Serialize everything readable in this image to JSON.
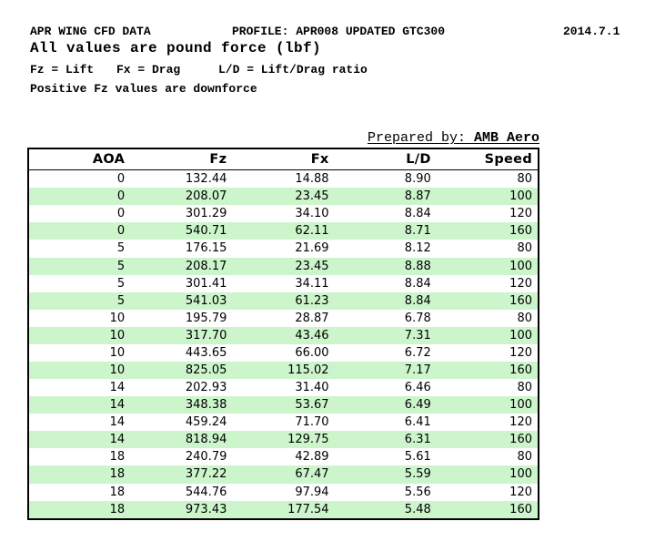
{
  "header": {
    "title": "APR WING CFD DATA",
    "profile": "PROFILE: APR008 UPDATED GTC300",
    "date": "2014.7.1",
    "subtitle": "All values are pound force (lbf)",
    "legend": [
      "Fz = Lift",
      "Fx = Drag",
      "L/D = Lift/Drag ratio"
    ],
    "note": "Positive Fz values are downforce"
  },
  "prepared_by": {
    "label": "Prepared by: ",
    "name": "AMB Aero"
  },
  "table": {
    "columns": [
      "AOA",
      "Fz",
      "Fx",
      "L/D",
      "Speed"
    ],
    "rows": [
      [
        "0",
        "132.44",
        "14.88",
        "8.90",
        "80"
      ],
      [
        "0",
        "208.07",
        "23.45",
        "8.87",
        "100"
      ],
      [
        "0",
        "301.29",
        "34.10",
        "8.84",
        "120"
      ],
      [
        "0",
        "540.71",
        "62.11",
        "8.71",
        "160"
      ],
      [
        "5",
        "176.15",
        "21.69",
        "8.12",
        "80"
      ],
      [
        "5",
        "208.17",
        "23.45",
        "8.88",
        "100"
      ],
      [
        "5",
        "301.41",
        "34.11",
        "8.84",
        "120"
      ],
      [
        "5",
        "541.03",
        "61.23",
        "8.84",
        "160"
      ],
      [
        "10",
        "195.79",
        "28.87",
        "6.78",
        "80"
      ],
      [
        "10",
        "317.70",
        "43.46",
        "7.31",
        "100"
      ],
      [
        "10",
        "443.65",
        "66.00",
        "6.72",
        "120"
      ],
      [
        "10",
        "825.05",
        "115.02",
        "7.17",
        "160"
      ],
      [
        "14",
        "202.93",
        "31.40",
        "6.46",
        "80"
      ],
      [
        "14",
        "348.38",
        "53.67",
        "6.49",
        "100"
      ],
      [
        "14",
        "459.24",
        "71.70",
        "6.41",
        "120"
      ],
      [
        "14",
        "818.94",
        "129.75",
        "6.31",
        "160"
      ],
      [
        "18",
        "240.79",
        "42.89",
        "5.61",
        "80"
      ],
      [
        "18",
        "377.22",
        "67.47",
        "5.59",
        "100"
      ],
      [
        "18",
        "544.76",
        "97.94",
        "5.56",
        "120"
      ],
      [
        "18",
        "973.43",
        "177.54",
        "5.48",
        "160"
      ]
    ]
  },
  "colors": {
    "stripe_green": "#ccf5cc",
    "border_black": "#000000"
  }
}
